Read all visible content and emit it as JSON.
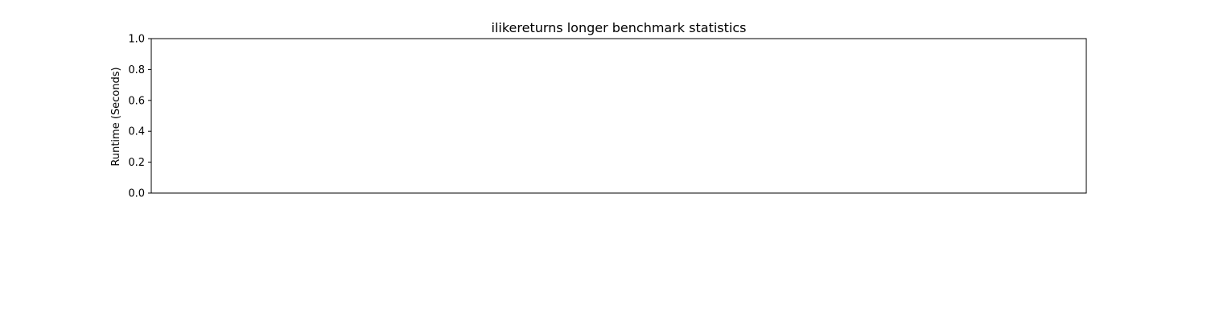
{
  "chart_data": {
    "type": "bar",
    "title": "ilikereturns longer benchmark statistics",
    "xlabel": "",
    "ylabel": "Runtime (Seconds)",
    "ylim": [
      0,
      1
    ],
    "yticks": [
      0.0,
      0.2,
      0.4,
      0.6,
      0.8,
      1.0
    ],
    "ytick_labels": [
      "0.0",
      "0.2",
      "0.4",
      "0.6",
      "0.8",
      "1.0"
    ],
    "categories": [],
    "series": [],
    "grid": false
  }
}
